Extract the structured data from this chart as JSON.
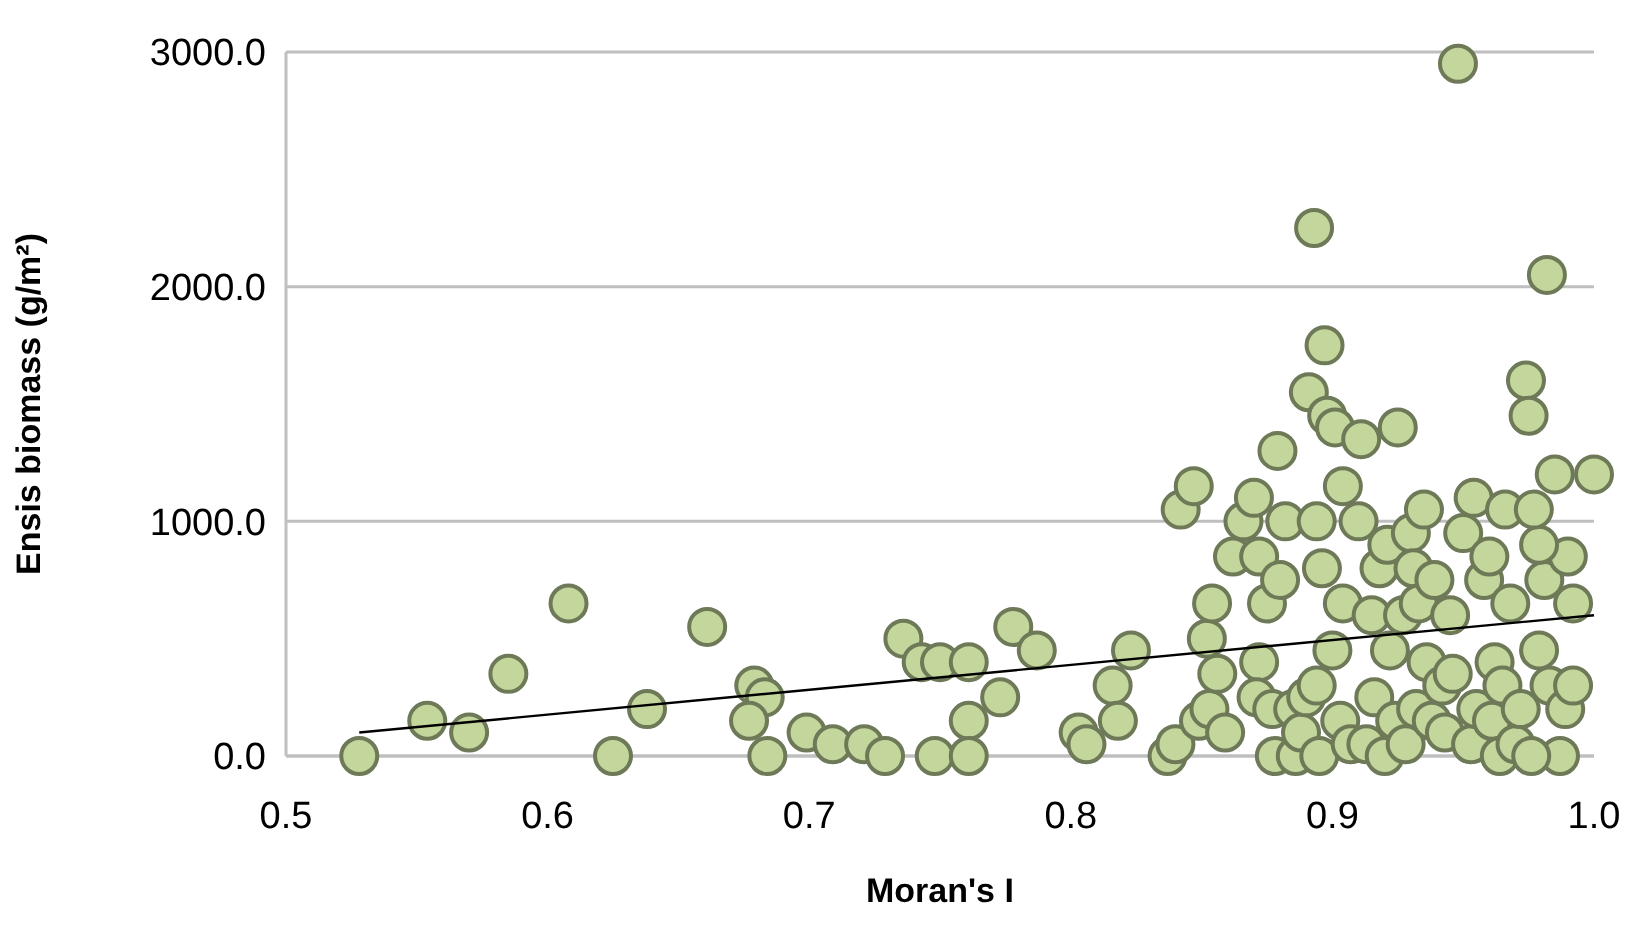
{
  "chart_data": {
    "type": "scatter",
    "xlabel": "Moran's I",
    "ylabel": "Ensis biomass (g/m²)",
    "xlim": [
      0.5,
      1.0
    ],
    "ylim": [
      0,
      3000
    ],
    "xticks": [
      {
        "value": 0.5,
        "label": "0.5"
      },
      {
        "value": 0.6,
        "label": "0.6"
      },
      {
        "value": 0.7,
        "label": "0.7"
      },
      {
        "value": 0.8,
        "label": "0.8"
      },
      {
        "value": 0.9,
        "label": "0.9"
      },
      {
        "value": 1.0,
        "label": "1.0"
      }
    ],
    "yticks": [
      {
        "value": 0,
        "label": "0.0"
      },
      {
        "value": 1000,
        "label": "1000.0"
      },
      {
        "value": 2000,
        "label": "2000.0"
      },
      {
        "value": 3000,
        "label": "3000.0"
      }
    ],
    "grid": "y",
    "series": [
      {
        "color": "#c3d69b",
        "marker": "circle",
        "x": [
          0.528,
          0.554,
          0.57,
          0.585,
          0.608,
          0.625,
          0.638,
          0.661,
          0.679,
          0.683,
          0.677,
          0.684,
          0.699,
          0.709,
          0.721,
          0.729,
          0.736,
          0.743,
          0.75,
          0.748,
          0.761,
          0.761,
          0.761,
          0.773,
          0.778,
          0.787,
          0.803,
          0.806,
          0.816,
          0.818,
          0.823,
          0.842,
          0.847,
          0.837,
          0.84,
          0.849,
          0.853,
          0.852,
          0.854,
          0.856,
          0.859,
          0.862,
          0.866,
          0.87,
          0.872,
          0.872,
          0.871,
          0.875,
          0.877,
          0.878,
          0.879,
          0.882,
          0.88,
          0.886,
          0.885,
          0.888,
          0.89,
          0.891,
          0.894,
          0.894,
          0.895,
          0.896,
          0.893,
          0.897,
          0.898,
          0.901,
          0.9,
          0.903,
          0.904,
          0.904,
          0.907,
          0.91,
          0.911,
          0.913,
          0.915,
          0.916,
          0.918,
          0.92,
          0.921,
          0.922,
          0.924,
          0.925,
          0.927,
          0.928,
          0.93,
          0.931,
          0.932,
          0.933,
          0.935,
          0.936,
          0.938,
          0.939,
          0.942,
          0.943,
          0.945,
          0.946,
          0.948,
          0.95,
          0.953,
          0.954,
          0.955,
          0.958,
          0.96,
          0.961,
          0.962,
          0.964,
          0.965,
          0.966,
          0.968,
          0.97,
          0.972,
          0.974,
          0.975,
          0.982,
          0.979,
          0.981,
          0.983,
          0.985,
          0.987,
          0.989,
          0.99,
          0.992,
          0.992,
          1.0,
          0.979,
          0.977,
          0.976
        ],
        "values": [
          0,
          150,
          100,
          350,
          650,
          0,
          200,
          550,
          300,
          250,
          150,
          0,
          100,
          50,
          50,
          0,
          500,
          400,
          400,
          0,
          400,
          150,
          0,
          250,
          550,
          450,
          100,
          50,
          300,
          150,
          450,
          1050,
          1150,
          0,
          50,
          150,
          200,
          500,
          650,
          350,
          100,
          850,
          1000,
          1100,
          850,
          400,
          250,
          650,
          200,
          0,
          1300,
          1000,
          750,
          0,
          200,
          100,
          250,
          1550,
          1000,
          300,
          0,
          800,
          2250,
          1750,
          1450,
          1400,
          450,
          150,
          1150,
          650,
          50,
          1000,
          1350,
          50,
          600,
          250,
          800,
          0,
          900,
          450,
          150,
          1400,
          600,
          50,
          950,
          800,
          200,
          650,
          1050,
          400,
          150,
          750,
          300,
          100,
          600,
          350,
          2950,
          950,
          50,
          1100,
          200,
          750,
          850,
          150,
          400,
          0,
          300,
          1050,
          650,
          50,
          200,
          1600,
          1450,
          2050,
          450,
          750,
          300,
          1200,
          0,
          200,
          850,
          650,
          300,
          1200,
          900,
          1050,
          0
        ]
      },
      {
        "type": "line",
        "color": "#000000",
        "marker": "none",
        "line_style": "solid",
        "x": [
          0.528,
          1.0
        ],
        "values": [
          100,
          600
        ]
      }
    ]
  }
}
